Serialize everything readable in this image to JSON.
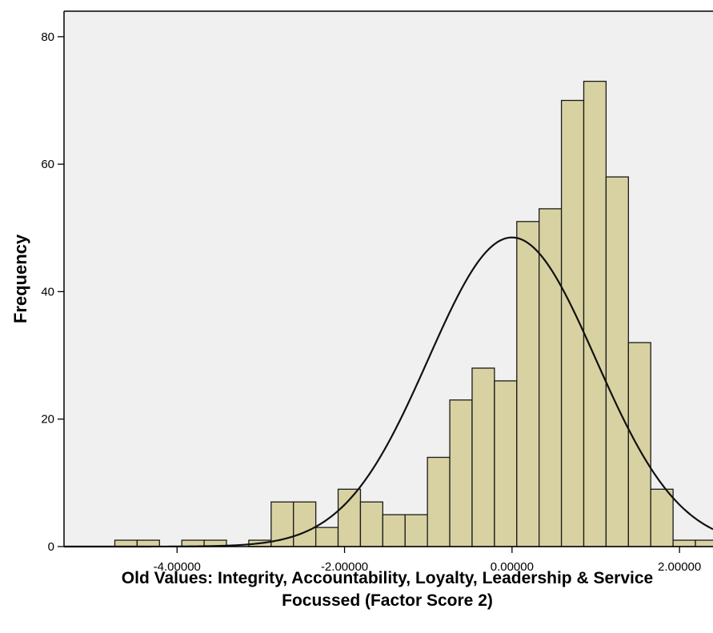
{
  "chart_data": {
    "type": "bar",
    "subtype": "histogram",
    "xlabel_line1": "Old Values: Integrity, Accountability, Loyalty, Leadership & Service",
    "xlabel_line2": "Focussed (Factor Score 2)",
    "ylabel": "Frequency",
    "xlim": [
      -5.35,
      2.4
    ],
    "ylim": [
      0,
      84
    ],
    "bin_width": 0.2667,
    "x_ticks": [
      {
        "value": -4.0,
        "label": "-4.00000"
      },
      {
        "value": -2.0,
        "label": "-2.00000"
      },
      {
        "value": 0.0,
        "label": "0.00000"
      },
      {
        "value": 2.0,
        "label": "2.00000"
      }
    ],
    "y_ticks": [
      {
        "value": 0,
        "label": "0"
      },
      {
        "value": 20,
        "label": "20"
      },
      {
        "value": 40,
        "label": "40"
      },
      {
        "value": 60,
        "label": "60"
      },
      {
        "value": 80,
        "label": "80"
      }
    ],
    "bins": [
      {
        "x0": -4.7433,
        "x1": -4.4767,
        "value": 1
      },
      {
        "x0": -4.4767,
        "x1": -4.21,
        "value": 1
      },
      {
        "x0": -4.21,
        "x1": -3.9433,
        "value": 0
      },
      {
        "x0": -3.9433,
        "x1": -3.6767,
        "value": 1
      },
      {
        "x0": -3.6767,
        "x1": -3.41,
        "value": 1
      },
      {
        "x0": -3.41,
        "x1": -3.1433,
        "value": 0
      },
      {
        "x0": -3.1433,
        "x1": -2.8767,
        "value": 1
      },
      {
        "x0": -2.8767,
        "x1": -2.61,
        "value": 7
      },
      {
        "x0": -2.61,
        "x1": -2.3433,
        "value": 7
      },
      {
        "x0": -2.3433,
        "x1": -2.0767,
        "value": 3
      },
      {
        "x0": -2.0767,
        "x1": -1.81,
        "value": 9
      },
      {
        "x0": -1.81,
        "x1": -1.5433,
        "value": 7
      },
      {
        "x0": -1.5433,
        "x1": -1.2767,
        "value": 5
      },
      {
        "x0": -1.2767,
        "x1": -1.01,
        "value": 5
      },
      {
        "x0": -1.01,
        "x1": -0.7433,
        "value": 14
      },
      {
        "x0": -0.7433,
        "x1": -0.4767,
        "value": 23
      },
      {
        "x0": -0.4767,
        "x1": -0.21,
        "value": 28
      },
      {
        "x0": -0.21,
        "x1": 0.0567,
        "value": 26
      },
      {
        "x0": 0.0567,
        "x1": 0.3233,
        "value": 51
      },
      {
        "x0": 0.3233,
        "x1": 0.59,
        "value": 53
      },
      {
        "x0": 0.59,
        "x1": 0.8567,
        "value": 70
      },
      {
        "x0": 0.8567,
        "x1": 1.1233,
        "value": 73
      },
      {
        "x0": 1.1233,
        "x1": 1.39,
        "value": 58
      },
      {
        "x0": 1.39,
        "x1": 1.6567,
        "value": 32
      },
      {
        "x0": 1.6567,
        "x1": 1.9233,
        "value": 9
      },
      {
        "x0": 1.9233,
        "x1": 2.19,
        "value": 1
      },
      {
        "x0": 2.19,
        "x1": 2.4567,
        "value": 1
      }
    ],
    "normal_curve": {
      "mean": 0.0,
      "sd": 1.0,
      "peak": 48.5
    },
    "colors": {
      "bar_fill": "#d8d2a2",
      "bar_stroke": "#1a1a1a",
      "plot_background": "#f0f0f0",
      "curve": "#111111",
      "text": "#000000"
    },
    "grid": false,
    "legend": "none"
  }
}
